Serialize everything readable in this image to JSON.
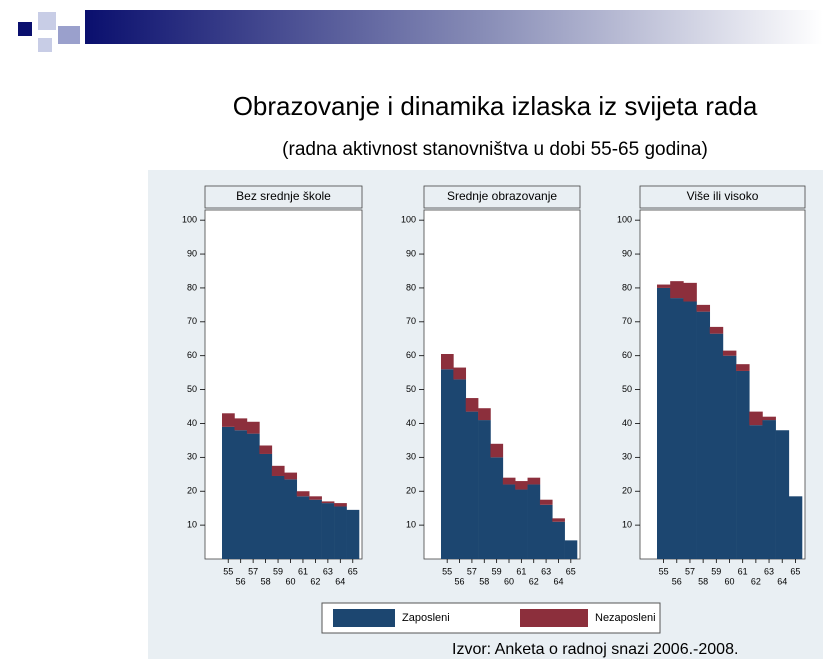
{
  "header": {
    "title": "Obrazovanje i dinamika izlaska iz svijeta rada",
    "subtitle": "(radna aktivnost stanovništva u dobi 55-65 godina)"
  },
  "source": "Izvor: Anketa o radnoj snazi 2006.-2008.",
  "chart_data": [
    {
      "type": "bar",
      "stacked": true,
      "title": "Bez srednje škole",
      "categories": [
        "55",
        "56",
        "57",
        "58",
        "59",
        "60",
        "61",
        "62",
        "63",
        "64",
        "65"
      ],
      "ylim": [
        0,
        103
      ],
      "yticks": [
        10,
        20,
        30,
        40,
        50,
        60,
        70,
        80,
        90,
        100
      ],
      "series": [
        {
          "name": "Zaposleni",
          "color": "#1c4670",
          "values": [
            39,
            38,
            37,
            31,
            24.5,
            23.5,
            18.5,
            17.5,
            16.5,
            15.5,
            14.5
          ]
        },
        {
          "name": "Nezaposleni",
          "color": "#8c2f3c",
          "values": [
            4,
            3.5,
            3.5,
            2.5,
            3,
            2,
            1.5,
            1,
            0.5,
            1,
            0
          ]
        }
      ]
    },
    {
      "type": "bar",
      "stacked": true,
      "title": "Srednje obrazovanje",
      "categories": [
        "55",
        "56",
        "57",
        "58",
        "59",
        "60",
        "61",
        "62",
        "63",
        "64",
        "65"
      ],
      "ylim": [
        0,
        103
      ],
      "yticks": [
        10,
        20,
        30,
        40,
        50,
        60,
        70,
        80,
        90,
        100
      ],
      "series": [
        {
          "name": "Zaposleni",
          "color": "#1c4670",
          "values": [
            56,
            53,
            43.5,
            41,
            30,
            22,
            20.5,
            22,
            16,
            11,
            5.5
          ]
        },
        {
          "name": "Nezaposleni",
          "color": "#8c2f3c",
          "values": [
            4.5,
            3.5,
            4,
            3.5,
            4,
            2,
            2.5,
            2,
            1.5,
            1,
            0
          ]
        }
      ]
    },
    {
      "type": "bar",
      "stacked": true,
      "title": "Više ili visoko",
      "categories": [
        "55",
        "56",
        "57",
        "58",
        "59",
        "60",
        "61",
        "62",
        "63",
        "64",
        "65"
      ],
      "ylim": [
        0,
        103
      ],
      "yticks": [
        10,
        20,
        30,
        40,
        50,
        60,
        70,
        80,
        90,
        100
      ],
      "series": [
        {
          "name": "Zaposleni",
          "color": "#1c4670",
          "values": [
            80,
            77,
            76,
            73,
            66.5,
            60,
            55.5,
            39.5,
            41,
            38,
            18.5
          ]
        },
        {
          "name": "Nezaposleni",
          "color": "#8c2f3c",
          "values": [
            1,
            5,
            5.5,
            2,
            2,
            1.5,
            2,
            4,
            1,
            0,
            0
          ]
        }
      ]
    }
  ]
}
